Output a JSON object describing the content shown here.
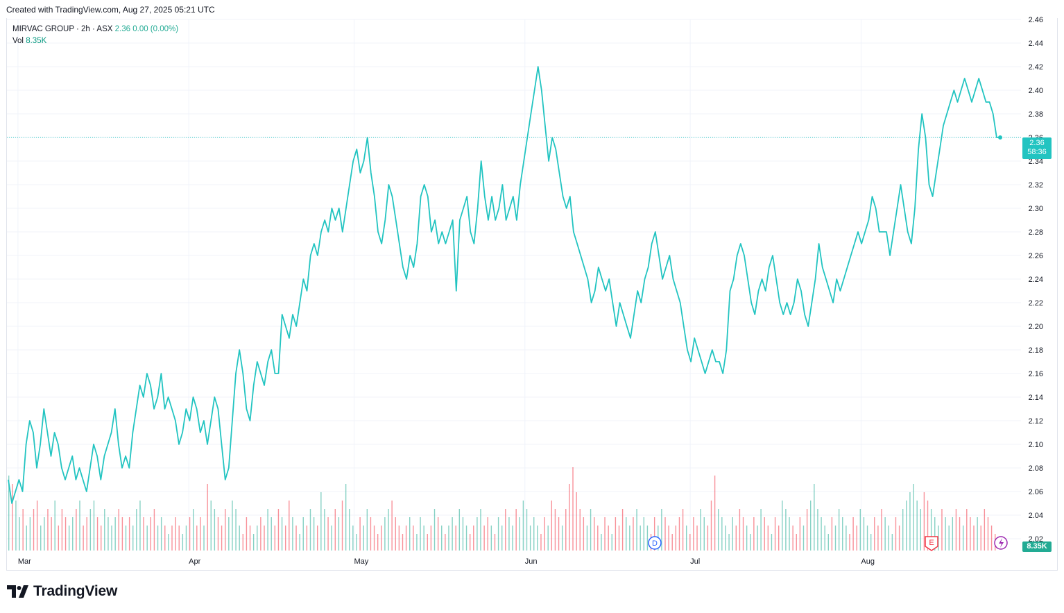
{
  "header": {
    "created_text": "Created with TradingView.com, Aug 27, 2025 05:21 UTC"
  },
  "legend": {
    "symbol": "MIRVAC GROUP · 2h · ASX",
    "price": "2.36",
    "change": "0.00 (0.00%)",
    "vol_label": "Vol",
    "vol_value": "8.35K"
  },
  "price_tag": {
    "price": "2.36",
    "countdown": "58:36"
  },
  "vol_tag": "8.35K",
  "brand": {
    "name": "TradingView"
  },
  "markers": {
    "dividend": "D",
    "earnings": "E"
  },
  "colors": {
    "line": "#22c4c1",
    "up_volume": "#22ab94",
    "down_volume": "#f23645",
    "grid": "#f0f3fa"
  },
  "chart_data": {
    "type": "line",
    "x_tick_labels": [
      "Mar",
      "Apr",
      "May",
      "Jun",
      "Jul",
      "Aug"
    ],
    "y_tick_labels": [
      "2.02",
      "2.04",
      "2.06",
      "2.08",
      "2.10",
      "2.12",
      "2.14",
      "2.16",
      "2.18",
      "2.20",
      "2.22",
      "2.24",
      "2.26",
      "2.28",
      "2.30",
      "2.32",
      "2.34",
      "2.36",
      "2.38",
      "2.40",
      "2.42",
      "2.44",
      "2.46"
    ],
    "ylim": [
      2.01,
      2.46
    ],
    "x_start": "2025-02-27",
    "x_end": "2025-08-27",
    "last_price": 2.36,
    "series": [
      {
        "values": [
          2.07,
          2.05,
          2.06,
          2.07,
          2.06,
          2.1,
          2.12,
          2.11,
          2.08,
          2.1,
          2.13,
          2.11,
          2.09,
          2.11,
          2.1,
          2.08,
          2.07,
          2.08,
          2.09,
          2.07,
          2.08,
          2.07,
          2.06,
          2.08,
          2.1,
          2.09,
          2.07,
          2.09,
          2.1,
          2.11,
          2.13,
          2.1,
          2.08,
          2.09,
          2.08,
          2.11,
          2.13,
          2.15,
          2.14,
          2.16,
          2.15,
          2.13,
          2.14,
          2.16,
          2.13,
          2.14,
          2.13,
          2.12,
          2.1,
          2.11,
          2.13,
          2.12,
          2.14,
          2.13,
          2.11,
          2.12,
          2.1,
          2.12,
          2.14,
          2.13,
          2.1,
          2.07,
          2.08,
          2.12,
          2.16,
          2.18,
          2.16,
          2.13,
          2.12,
          2.15,
          2.17,
          2.16,
          2.15,
          2.17,
          2.18,
          2.16,
          2.16,
          2.21,
          2.2,
          2.19,
          2.21,
          2.2,
          2.22,
          2.24,
          2.23,
          2.26,
          2.27,
          2.26,
          2.28,
          2.29,
          2.28,
          2.3,
          2.29,
          2.3,
          2.28,
          2.3,
          2.32,
          2.34,
          2.35,
          2.33,
          2.34,
          2.36,
          2.33,
          2.31,
          2.28,
          2.27,
          2.29,
          2.32,
          2.31,
          2.29,
          2.27,
          2.25,
          2.24,
          2.26,
          2.25,
          2.27,
          2.31,
          2.32,
          2.31,
          2.28,
          2.29,
          2.27,
          2.28,
          2.27,
          2.28,
          2.29,
          2.23,
          2.29,
          2.3,
          2.31,
          2.28,
          2.27,
          2.3,
          2.34,
          2.31,
          2.29,
          2.31,
          2.29,
          2.3,
          2.32,
          2.29,
          2.3,
          2.31,
          2.29,
          2.32,
          2.34,
          2.36,
          2.38,
          2.4,
          2.42,
          2.4,
          2.37,
          2.34,
          2.36,
          2.35,
          2.33,
          2.31,
          2.3,
          2.31,
          2.28,
          2.27,
          2.26,
          2.25,
          2.24,
          2.22,
          2.23,
          2.25,
          2.24,
          2.23,
          2.24,
          2.22,
          2.2,
          2.22,
          2.21,
          2.2,
          2.19,
          2.21,
          2.23,
          2.22,
          2.24,
          2.25,
          2.27,
          2.28,
          2.26,
          2.24,
          2.25,
          2.26,
          2.24,
          2.23,
          2.22,
          2.2,
          2.18,
          2.17,
          2.19,
          2.18,
          2.17,
          2.16,
          2.17,
          2.18,
          2.17,
          2.17,
          2.16,
          2.18,
          2.23,
          2.24,
          2.26,
          2.27,
          2.26,
          2.24,
          2.22,
          2.21,
          2.23,
          2.24,
          2.23,
          2.25,
          2.26,
          2.24,
          2.22,
          2.21,
          2.22,
          2.21,
          2.22,
          2.24,
          2.23,
          2.21,
          2.2,
          2.22,
          2.24,
          2.27,
          2.25,
          2.24,
          2.23,
          2.22,
          2.24,
          2.23,
          2.24,
          2.25,
          2.26,
          2.27,
          2.28,
          2.27,
          2.28,
          2.29,
          2.31,
          2.3,
          2.28,
          2.28,
          2.28,
          2.26,
          2.28,
          2.3,
          2.32,
          2.3,
          2.28,
          2.27,
          2.3,
          2.35,
          2.38,
          2.36,
          2.32,
          2.31,
          2.33,
          2.35,
          2.37,
          2.38,
          2.39,
          2.4,
          2.39,
          2.4,
          2.41,
          2.4,
          2.39,
          2.4,
          2.41,
          2.4,
          2.39,
          2.39,
          2.38,
          2.36,
          2.36
        ]
      }
    ],
    "volume": {
      "values": [
        0.9,
        0.8,
        0.6,
        0.4,
        0.5,
        0.3,
        0.4,
        0.5,
        0.6,
        0.3,
        0.4,
        0.5,
        0.4,
        0.6,
        0.3,
        0.5,
        0.4,
        0.3,
        0.4,
        0.5,
        0.6,
        0.3,
        0.4,
        0.5,
        0.6,
        0.4,
        0.3,
        0.5,
        0.4,
        0.3,
        0.4,
        0.5,
        0.4,
        0.3,
        0.4,
        0.3,
        0.5,
        0.6,
        0.4,
        0.3,
        0.4,
        0.5,
        0.3,
        0.4,
        0.3,
        0.2,
        0.3,
        0.4,
        0.3,
        0.2,
        0.3,
        0.4,
        0.5,
        0.3,
        0.4,
        0.3,
        0.8,
        0.6,
        0.5,
        0.4,
        0.3,
        0.5,
        0.4,
        0.6,
        0.5,
        0.3,
        0.2,
        0.4,
        0.3,
        0.2,
        0.3,
        0.4,
        0.3,
        0.5,
        0.4,
        0.3,
        0.5,
        0.4,
        0.3,
        0.6,
        0.4,
        0.3,
        0.2,
        0.4,
        0.3,
        0.5,
        0.4,
        0.3,
        0.7,
        0.5,
        0.4,
        0.3,
        0.5,
        0.4,
        0.6,
        0.8,
        0.5,
        0.3,
        0.2,
        0.4,
        0.3,
        0.5,
        0.4,
        0.3,
        0.2,
        0.3,
        0.4,
        0.5,
        0.6,
        0.4,
        0.3,
        0.2,
        0.3,
        0.4,
        0.3,
        0.2,
        0.4,
        0.3,
        0.2,
        0.3,
        0.5,
        0.4,
        0.3,
        0.2,
        0.3,
        0.4,
        0.3,
        0.5,
        0.4,
        0.3,
        0.2,
        0.3,
        0.4,
        0.5,
        0.3,
        0.4,
        0.3,
        0.2,
        0.4,
        0.3,
        0.5,
        0.4,
        0.3,
        0.5,
        0.4,
        0.6,
        0.5,
        0.3,
        0.4,
        0.3,
        0.2,
        0.4,
        0.3,
        0.6,
        0.5,
        0.4,
        0.3,
        0.5,
        0.8,
        1.0,
        0.7,
        0.5,
        0.4,
        0.3,
        0.5,
        0.4,
        0.3,
        0.2,
        0.4,
        0.3,
        0.2,
        0.4,
        0.3,
        0.5,
        0.4,
        0.3,
        0.4,
        0.5,
        0.3,
        0.4,
        0.3,
        0.2,
        0.4,
        0.3,
        0.5,
        0.4,
        0.3,
        0.2,
        0.3,
        0.4,
        0.5,
        0.3,
        0.2,
        0.4,
        0.3,
        0.5,
        0.4,
        0.3,
        0.6,
        0.9,
        0.5,
        0.4,
        0.3,
        0.2,
        0.4,
        0.3,
        0.5,
        0.4,
        0.3,
        0.2,
        0.4,
        0.3,
        0.5,
        0.4,
        0.3,
        0.2,
        0.4,
        0.3,
        0.6,
        0.5,
        0.4,
        0.3,
        0.2,
        0.4,
        0.3,
        0.5,
        0.6,
        0.8,
        0.5,
        0.4,
        0.3,
        0.2,
        0.4,
        0.3,
        0.5,
        0.4,
        0.3,
        0.2,
        0.4,
        0.3,
        0.5,
        0.4,
        0.3,
        0.2,
        0.4,
        0.3,
        0.5,
        0.4,
        0.3,
        0.2,
        0.4,
        0.3,
        0.5,
        0.6,
        0.7,
        0.8,
        0.6,
        0.5,
        0.7,
        0.6,
        0.5,
        0.4,
        0.3,
        0.5,
        0.4,
        0.3,
        0.4,
        0.5,
        0.4,
        0.3,
        0.5,
        0.4,
        0.3,
        0.4,
        0.3,
        0.5,
        0.4,
        0.3,
        0.2
      ],
      "up": [
        1,
        0,
        1,
        1,
        0,
        1,
        1,
        0,
        0,
        1,
        1,
        0,
        0,
        1,
        0,
        0,
        0,
        1,
        1,
        0,
        1,
        0,
        0,
        1,
        1,
        0,
        0,
        1,
        1,
        1,
        1,
        0,
        0,
        1,
        0,
        1,
        1,
        1,
        0,
        1,
        0,
        0,
        1,
        1,
        0,
        1,
        0,
        0,
        0,
        1,
        1,
        0,
        1,
        0,
        0,
        1,
        0,
        1,
        1,
        0,
        0,
        0,
        1,
        1,
        1,
        1,
        0,
        0,
        0,
        1,
        1,
        0,
        0,
        1,
        1,
        0,
        0,
        1,
        0,
        0,
        1,
        0,
        1,
        1,
        0,
        1,
        1,
        0,
        1,
        1,
        0,
        1,
        0,
        1,
        0,
        1,
        1,
        1,
        1,
        0,
        1,
        1,
        0,
        0,
        0,
        0,
        1,
        1,
        0,
        0,
        0,
        0,
        0,
        1,
        0,
        1,
        1,
        1,
        0,
        0,
        1,
        0,
        1,
        0,
        1,
        1,
        0,
        1,
        1,
        1,
        0,
        0,
        1,
        1,
        0,
        0,
        1,
        0,
        1,
        1,
        0,
        1,
        1,
        0,
        1,
        1,
        1,
        1,
        1,
        1,
        0,
        0,
        1,
        0,
        0,
        0,
        1,
        0,
        0,
        0,
        0,
        0,
        0,
        1,
        1,
        0,
        0,
        1,
        0,
        0,
        1,
        0,
        0,
        0,
        1,
        1,
        0,
        1,
        1,
        1,
        1,
        0,
        0,
        1,
        1,
        0,
        0,
        0,
        0,
        0,
        0,
        1,
        0,
        0,
        0,
        1,
        1,
        0,
        0,
        0,
        1,
        1,
        1,
        1,
        1,
        0,
        0,
        0,
        1,
        1,
        0,
        1,
        1,
        0,
        0,
        1,
        0,
        0,
        1,
        1,
        1,
        0,
        0,
        0,
        1,
        0,
        1,
        1,
        1,
        1,
        1,
        1,
        0,
        1,
        1,
        1,
        1,
        0,
        0,
        0,
        1,
        1,
        1,
        1,
        0,
        0,
        0,
        1,
        1,
        1,
        0,
        0,
        1,
        1,
        1,
        1,
        1,
        1,
        0,
        0,
        1,
        1,
        1,
        0,
        1,
        1,
        1,
        0,
        0,
        1,
        0,
        0,
        0,
        1,
        0
      ]
    }
  }
}
